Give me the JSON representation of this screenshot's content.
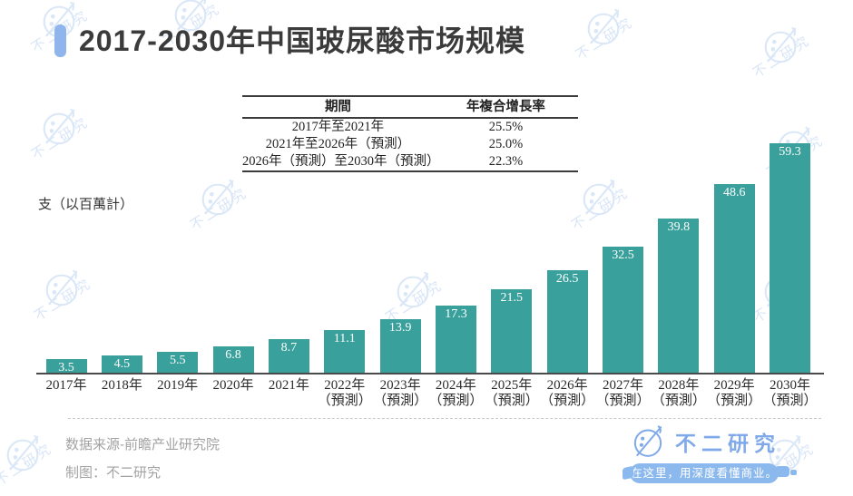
{
  "title": {
    "text": "2017-2030年中国玻尿酸市场规模",
    "accent_color": "#8fb5ec",
    "text_color": "#3b3b3b"
  },
  "cagr_table": {
    "headers": {
      "period": "期間",
      "cagr": "年複合增長率"
    },
    "rows": [
      {
        "period": "2017年至2021年",
        "cagr": "25.5%"
      },
      {
        "period": "2021年至2026年（預測）",
        "cagr": "25.0%"
      },
      {
        "period": "2026年（預測）至2030年（預測）",
        "cagr": "22.3%"
      }
    ]
  },
  "chart_data": {
    "type": "bar",
    "title": "2017-2030年中国玻尿酸市场规模",
    "ylabel": "支（以百萬計）",
    "xlabel": "",
    "categories": [
      "2017年",
      "2018年",
      "2019年",
      "2020年",
      "2021年",
      "2022年",
      "2023年",
      "2024年",
      "2025年",
      "2026年",
      "2027年",
      "2028年",
      "2029年",
      "2030年"
    ],
    "category_notes": [
      "",
      "",
      "",
      "",
      "",
      "（預測）",
      "（預測）",
      "（預測）",
      "（預測）",
      "（預測）",
      "（預測）",
      "（預測）",
      "（預測）",
      "（預測）"
    ],
    "values": [
      3.5,
      4.5,
      5.5,
      6.8,
      8.7,
      11.1,
      13.9,
      17.3,
      21.5,
      26.5,
      32.5,
      39.8,
      48.6,
      59.3
    ],
    "ylim": [
      0,
      60
    ],
    "grid": false,
    "legend": "none",
    "bar_color": "#3aa09b",
    "value_label_color": "#ffffff",
    "axis_color": "#4a4a4a"
  },
  "footer": {
    "source": "数据来源-前瞻产业研究院",
    "credit": "制图：不二研究"
  },
  "brand": {
    "name": "不二研究",
    "tagline": "在这里，用深度看懂商业。",
    "name_color": "#7fa9e8",
    "pill_color": "#8cb9ed"
  },
  "watermark": {
    "text": "不二研究",
    "color": "#bcd4f2"
  }
}
